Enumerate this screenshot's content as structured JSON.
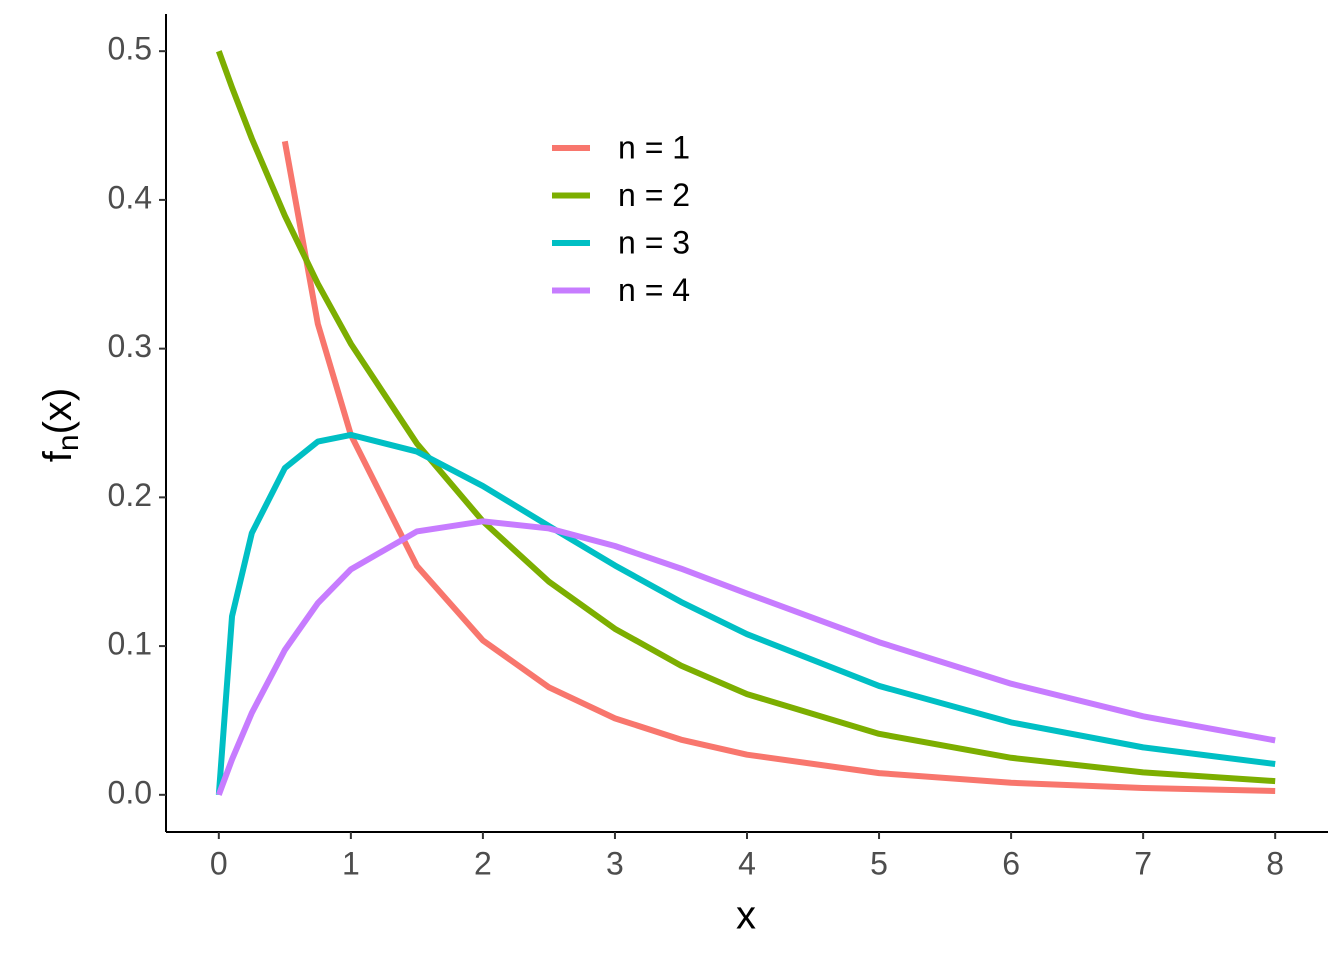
{
  "chart_data": {
    "type": "line",
    "xlabel": "x",
    "ylabel": [
      "f",
      "n",
      "(x)"
    ],
    "x": [
      0,
      0.1,
      0.25,
      0.5,
      0.75,
      1,
      1.5,
      2,
      2.5,
      3,
      3.5,
      4,
      5,
      6,
      7,
      8
    ],
    "series": [
      {
        "name": "n = 1",
        "color": "#F8766D",
        "values": [
          null,
          null,
          null,
          0.4394,
          0.3166,
          0.242,
          0.1539,
          0.1038,
          0.0723,
          0.0514,
          0.0371,
          0.027,
          0.0146,
          0.0081,
          0.0046,
          0.0026
        ]
      },
      {
        "name": "n = 2",
        "color": "#7CAE00",
        "values": [
          0.5,
          0.4756,
          0.4412,
          0.3894,
          0.3436,
          0.3033,
          0.2362,
          0.1839,
          0.1433,
          0.1116,
          0.0869,
          0.0677,
          0.041,
          0.0249,
          0.0151,
          0.0092
        ]
      },
      {
        "name": "n = 3",
        "color": "#00BFC4",
        "values": [
          0,
          0.12,
          0.176,
          0.2197,
          0.2375,
          0.242,
          0.2308,
          0.2076,
          0.1807,
          0.1542,
          0.1297,
          0.108,
          0.0732,
          0.0487,
          0.0319,
          0.0207
        ]
      },
      {
        "name": "n = 4",
        "color": "#C77CFF",
        "values": [
          0,
          0.0238,
          0.0551,
          0.0974,
          0.1289,
          0.1516,
          0.1771,
          0.1839,
          0.1791,
          0.1673,
          0.1521,
          0.1353,
          0.1026,
          0.0747,
          0.0528,
          0.0366
        ]
      }
    ],
    "xlim": [
      -0.4,
      8.4
    ],
    "ylim": [
      -0.025,
      0.525
    ],
    "xticks": [
      0,
      1,
      2,
      3,
      4,
      5,
      6,
      7,
      8
    ],
    "yticks": [
      {
        "value": 0,
        "label": "0.0"
      },
      0.1,
      0.2,
      0.3,
      0.4,
      0.5
    ],
    "grid": false
  }
}
